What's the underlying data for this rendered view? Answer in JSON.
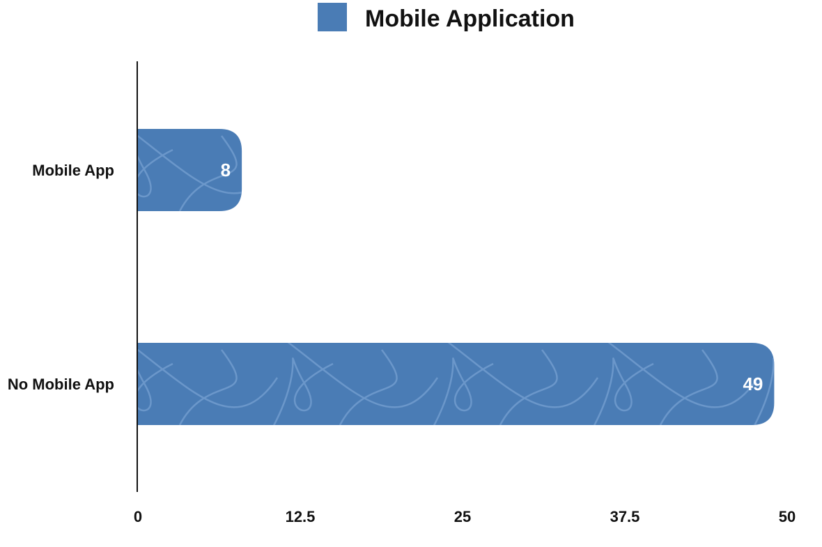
{
  "chart_data": {
    "type": "bar",
    "orientation": "horizontal",
    "categories": [
      "Mobile App",
      "No Mobile App"
    ],
    "series": [
      {
        "name": "Mobile Application",
        "values": [
          8,
          49
        ]
      }
    ],
    "data_labels": [
      "8",
      "49"
    ],
    "xlim": [
      0,
      50
    ],
    "xticks": [
      0,
      12.5,
      25,
      37.5,
      50
    ],
    "xtick_labels": [
      "0",
      "12.5",
      "25",
      "37.5",
      "50"
    ],
    "legend_position": "top-center",
    "grid": false,
    "bar_color": "#4a7cb5",
    "pattern_color": "#7aa3d3",
    "axis_color": "#111111",
    "label_color": "#111111",
    "data_label_color": "#ffffff"
  }
}
